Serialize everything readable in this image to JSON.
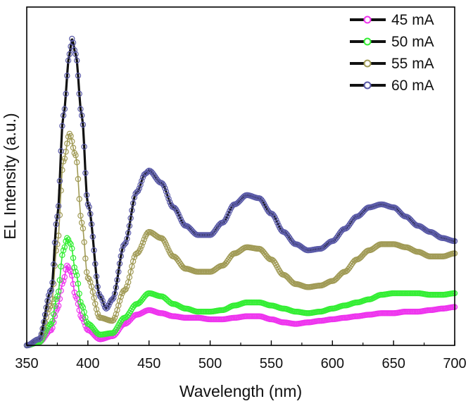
{
  "chart_data": {
    "type": "line",
    "title": "",
    "xlabel": "Wavelength (nm)",
    "ylabel": "EL Intensity (a.u.)",
    "xlim": [
      350,
      700
    ],
    "ylim": [
      0,
      1.0
    ],
    "x_ticks": [
      "350",
      "400",
      "450",
      "500",
      "550",
      "600",
      "650",
      "700"
    ],
    "y_tick_labels_shown": false,
    "legend_position": "top-right",
    "markers": "open-circle with dark line",
    "series": [
      {
        "name": "45 mA",
        "color": "#ee33ee",
        "line_color": "#ee33ee",
        "points": [
          [
            350,
            0.0
          ],
          [
            360,
            0.01
          ],
          [
            370,
            0.05
          ],
          [
            375,
            0.12
          ],
          [
            380,
            0.21
          ],
          [
            383,
            0.26
          ],
          [
            386,
            0.24
          ],
          [
            390,
            0.16
          ],
          [
            395,
            0.09
          ],
          [
            400,
            0.05
          ],
          [
            410,
            0.02
          ],
          [
            420,
            0.03
          ],
          [
            430,
            0.07
          ],
          [
            440,
            0.1
          ],
          [
            450,
            0.115
          ],
          [
            460,
            0.105
          ],
          [
            470,
            0.095
          ],
          [
            480,
            0.09
          ],
          [
            490,
            0.09
          ],
          [
            500,
            0.085
          ],
          [
            510,
            0.085
          ],
          [
            520,
            0.09
          ],
          [
            530,
            0.095
          ],
          [
            540,
            0.095
          ],
          [
            550,
            0.085
          ],
          [
            560,
            0.075
          ],
          [
            570,
            0.07
          ],
          [
            580,
            0.075
          ],
          [
            590,
            0.08
          ],
          [
            600,
            0.085
          ],
          [
            610,
            0.09
          ],
          [
            620,
            0.095
          ],
          [
            630,
            0.1
          ],
          [
            640,
            0.105
          ],
          [
            650,
            0.105
          ],
          [
            660,
            0.11
          ],
          [
            670,
            0.11
          ],
          [
            680,
            0.115
          ],
          [
            690,
            0.12
          ],
          [
            700,
            0.125
          ]
        ]
      },
      {
        "name": "50 mA",
        "color": "#33ee33",
        "line_color": "#33ee33",
        "points": [
          [
            350,
            0.0
          ],
          [
            360,
            0.01
          ],
          [
            370,
            0.07
          ],
          [
            375,
            0.16
          ],
          [
            380,
            0.31
          ],
          [
            383,
            0.35
          ],
          [
            386,
            0.33
          ],
          [
            390,
            0.24
          ],
          [
            395,
            0.13
          ],
          [
            400,
            0.07
          ],
          [
            410,
            0.035
          ],
          [
            420,
            0.04
          ],
          [
            430,
            0.09
          ],
          [
            440,
            0.135
          ],
          [
            450,
            0.17
          ],
          [
            460,
            0.16
          ],
          [
            470,
            0.135
          ],
          [
            480,
            0.12
          ],
          [
            490,
            0.11
          ],
          [
            500,
            0.11
          ],
          [
            510,
            0.115
          ],
          [
            520,
            0.13
          ],
          [
            530,
            0.14
          ],
          [
            540,
            0.14
          ],
          [
            550,
            0.13
          ],
          [
            560,
            0.12
          ],
          [
            570,
            0.11
          ],
          [
            580,
            0.105
          ],
          [
            590,
            0.11
          ],
          [
            600,
            0.12
          ],
          [
            610,
            0.13
          ],
          [
            620,
            0.14
          ],
          [
            630,
            0.15
          ],
          [
            640,
            0.165
          ],
          [
            650,
            0.17
          ],
          [
            660,
            0.17
          ],
          [
            670,
            0.17
          ],
          [
            680,
            0.165
          ],
          [
            690,
            0.165
          ],
          [
            700,
            0.17
          ]
        ]
      },
      {
        "name": "55 mA",
        "color": "#a09a55",
        "line_color": "#a09a55",
        "points": [
          [
            350,
            0.0
          ],
          [
            360,
            0.02
          ],
          [
            370,
            0.13
          ],
          [
            375,
            0.33
          ],
          [
            380,
            0.6
          ],
          [
            385,
            0.69
          ],
          [
            390,
            0.62
          ],
          [
            395,
            0.4
          ],
          [
            400,
            0.22
          ],
          [
            410,
            0.09
          ],
          [
            420,
            0.08
          ],
          [
            430,
            0.18
          ],
          [
            440,
            0.3
          ],
          [
            450,
            0.37
          ],
          [
            460,
            0.35
          ],
          [
            470,
            0.29
          ],
          [
            480,
            0.25
          ],
          [
            490,
            0.24
          ],
          [
            500,
            0.24
          ],
          [
            510,
            0.26
          ],
          [
            520,
            0.3
          ],
          [
            530,
            0.32
          ],
          [
            540,
            0.315
          ],
          [
            550,
            0.28
          ],
          [
            560,
            0.23
          ],
          [
            570,
            0.2
          ],
          [
            580,
            0.19
          ],
          [
            590,
            0.195
          ],
          [
            600,
            0.21
          ],
          [
            610,
            0.24
          ],
          [
            620,
            0.28
          ],
          [
            630,
            0.31
          ],
          [
            640,
            0.33
          ],
          [
            650,
            0.33
          ],
          [
            660,
            0.32
          ],
          [
            670,
            0.305
          ],
          [
            680,
            0.29
          ],
          [
            690,
            0.29
          ],
          [
            700,
            0.3
          ]
        ]
      },
      {
        "name": "60 mA",
        "color": "#5a5aa8",
        "line_color": "#111111",
        "points": [
          [
            350,
            0.0
          ],
          [
            360,
            0.02
          ],
          [
            370,
            0.18
          ],
          [
            375,
            0.42
          ],
          [
            380,
            0.75
          ],
          [
            385,
            0.95
          ],
          [
            387,
            1.0
          ],
          [
            390,
            0.95
          ],
          [
            395,
            0.75
          ],
          [
            400,
            0.46
          ],
          [
            410,
            0.16
          ],
          [
            415,
            0.12
          ],
          [
            420,
            0.15
          ],
          [
            430,
            0.33
          ],
          [
            440,
            0.5
          ],
          [
            447,
            0.56
          ],
          [
            450,
            0.57
          ],
          [
            460,
            0.53
          ],
          [
            470,
            0.45
          ],
          [
            480,
            0.39
          ],
          [
            490,
            0.36
          ],
          [
            500,
            0.36
          ],
          [
            510,
            0.4
          ],
          [
            520,
            0.46
          ],
          [
            530,
            0.49
          ],
          [
            540,
            0.48
          ],
          [
            550,
            0.43
          ],
          [
            560,
            0.37
          ],
          [
            570,
            0.33
          ],
          [
            580,
            0.31
          ],
          [
            590,
            0.315
          ],
          [
            600,
            0.34
          ],
          [
            610,
            0.38
          ],
          [
            620,
            0.42
          ],
          [
            630,
            0.45
          ],
          [
            640,
            0.46
          ],
          [
            650,
            0.45
          ],
          [
            660,
            0.42
          ],
          [
            670,
            0.39
          ],
          [
            680,
            0.37
          ],
          [
            690,
            0.35
          ],
          [
            700,
            0.34
          ]
        ]
      }
    ]
  }
}
